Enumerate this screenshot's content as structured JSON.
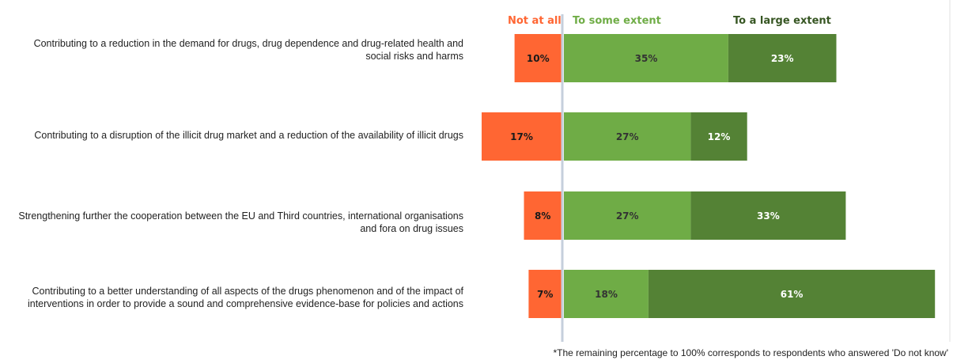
{
  "chart_data": {
    "type": "bar",
    "stacked": "diverging",
    "categories": [
      "Contributing to a reduction in the demand for drugs, drug dependence and drug-related health and social risks and harms",
      "Contributing to a disruption of the illicit drug market and a reduction of the availability of illicit drugs",
      "Strengthening further the cooperation between the EU and Third countries, international organisations and fora on drug issues",
      "Contributing to a better understanding of all aspects of the drugs phenomenon and of the impact of interventions in order to provide a sound and comprehensive evidence-base for policies and actions"
    ],
    "series": [
      {
        "name": "Not at all",
        "values": [
          10,
          17,
          8,
          7
        ],
        "labels": [
          "10%",
          "17%",
          "8%",
          "7%"
        ],
        "color": "#ff6633",
        "label_color": "#1a1a1a"
      },
      {
        "name": "To some extent",
        "values": [
          35,
          27,
          27,
          18
        ],
        "labels": [
          "35%",
          "27%",
          "27%",
          "18%"
        ],
        "color": "#6fac46",
        "label_color": "#333333"
      },
      {
        "name": "To a large extent",
        "values": [
          23,
          12,
          33,
          61
        ],
        "labels": [
          "23%",
          "12%",
          "33%",
          "61%"
        ],
        "color": "#548235",
        "label_color": "#ffffff"
      }
    ],
    "legend_colors": [
      "#ff6633",
      "#70ad47",
      "#375623"
    ],
    "legend": "top",
    "grid": false,
    "footnote": "*The remaining percentage to 100% corresponds to respondents who answered 'Do not know'"
  }
}
